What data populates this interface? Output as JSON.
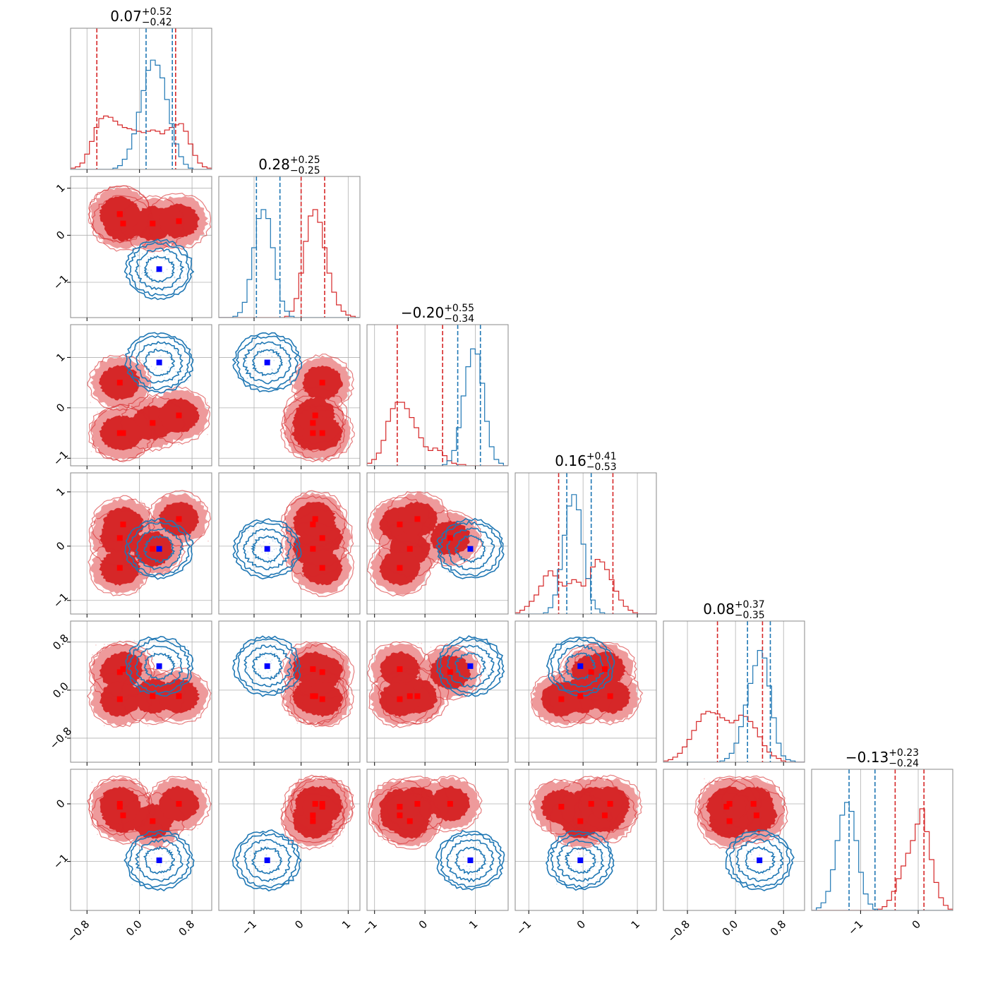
{
  "colors": {
    "red": "#d62728",
    "blue": "#1f77b4",
    "red_marker": "#ff0000",
    "blue_marker": "#0000ff",
    "grid": "#b0b0b0",
    "frame": "#888888"
  },
  "chart_data": {
    "type": "corner",
    "dims": 6,
    "grid": true,
    "ranges": [
      [
        -1.05,
        1.1
      ],
      [
        -1.75,
        1.25
      ],
      [
        -1.15,
        1.65
      ],
      [
        -1.25,
        1.35
      ],
      [
        -1.2,
        1.15
      ],
      [
        -1.85,
        0.6
      ]
    ],
    "ticks": [
      {
        "values": [
          -0.8,
          0.0,
          0.8
        ],
        "labels": [
          "−0.8",
          "0.0",
          "0.8"
        ]
      },
      {
        "values": [
          -1,
          0,
          1
        ],
        "labels": [
          "−1",
          "0",
          "1"
        ]
      },
      {
        "values": [
          -1,
          0,
          1
        ],
        "labels": [
          "−1",
          "0",
          "1"
        ]
      },
      {
        "values": [
          -1,
          0,
          1
        ],
        "labels": [
          "−1",
          "0",
          "1"
        ]
      },
      {
        "values": [
          -0.8,
          0.0,
          0.8
        ],
        "labels": [
          "−0.8",
          "0.0",
          "0.8"
        ]
      },
      {
        "values": [
          -1,
          0
        ],
        "labels": [
          "−1",
          "0"
        ]
      }
    ],
    "titles": [
      {
        "median": "0.07",
        "plus": "+0.52",
        "minus": "−0.42"
      },
      {
        "median": "0.28",
        "plus": "+0.25",
        "minus": "−0.25"
      },
      {
        "median": "−0.20",
        "plus": "+0.55",
        "minus": "−0.34"
      },
      {
        "median": "0.16",
        "plus": "+0.41",
        "minus": "−0.53"
      },
      {
        "median": "0.08",
        "plus": "+0.37",
        "minus": "−0.35"
      },
      {
        "median": "−0.13",
        "plus": "+0.23",
        "minus": "−0.24"
      }
    ],
    "red_modes": [
      [
        -0.3,
        0.45,
        0.5,
        0.15,
        0.3,
        0.0
      ],
      [
        -0.25,
        0.25,
        -0.5,
        0.4,
        0.35,
        -0.2
      ],
      [
        0.2,
        0.25,
        -0.3,
        -0.05,
        -0.1,
        -0.3
      ],
      [
        0.6,
        0.3,
        -0.15,
        0.5,
        -0.1,
        0.0
      ],
      [
        -0.3,
        0.45,
        -0.5,
        -0.4,
        -0.15,
        -0.05
      ]
    ],
    "blue_center": [
      0.3,
      -0.72,
      0.9,
      -0.05,
      0.4,
      -0.98
    ],
    "quantiles": {
      "red": [
        [
          -0.65,
          0.55
        ],
        [
          0.0,
          0.5
        ],
        [
          -0.55,
          0.35
        ],
        [
          -0.45,
          0.55
        ],
        [
          -0.3,
          0.45
        ],
        [
          -0.4,
          0.1
        ]
      ],
      "blue": [
        [
          0.1,
          0.5
        ],
        [
          -0.95,
          -0.45
        ],
        [
          0.65,
          1.1
        ],
        [
          -0.3,
          0.15
        ],
        [
          0.2,
          0.58
        ],
        [
          -1.2,
          -0.75
        ]
      ]
    },
    "histograms": {
      "red": [
        [
          0.01,
          0.02,
          0.05,
          0.12,
          0.22,
          0.33,
          0.4,
          0.42,
          0.41,
          0.38,
          0.35,
          0.33,
          0.32,
          0.31,
          0.3,
          0.29,
          0.3,
          0.31,
          0.3,
          0.28,
          0.31,
          0.33,
          0.35,
          0.36,
          0.3,
          0.2,
          0.11,
          0.05,
          0.02,
          0.01
        ],
        [
          0.0,
          0.0,
          0.0,
          0.0,
          0.0,
          0.0,
          0.0,
          0.0,
          0.0,
          0.0,
          0.0,
          0.0,
          0.0,
          0.0,
          0.01,
          0.05,
          0.15,
          0.35,
          0.6,
          0.8,
          0.85,
          0.75,
          0.55,
          0.35,
          0.2,
          0.1,
          0.05,
          0.02,
          0.01,
          0.0
        ],
        [
          0.02,
          0.05,
          0.1,
          0.2,
          0.35,
          0.45,
          0.5,
          0.5,
          0.45,
          0.38,
          0.3,
          0.22,
          0.15,
          0.12,
          0.14,
          0.12,
          0.08,
          0.04,
          0.02,
          0.01,
          0.01,
          0.0,
          0.0,
          0.0,
          0.0,
          0.0,
          0.0,
          0.0,
          0.0,
          0.0
        ],
        [
          0.01,
          0.03,
          0.06,
          0.1,
          0.15,
          0.22,
          0.3,
          0.34,
          0.3,
          0.25,
          0.22,
          0.24,
          0.27,
          0.25,
          0.22,
          0.28,
          0.37,
          0.43,
          0.41,
          0.35,
          0.27,
          0.18,
          0.11,
          0.06,
          0.03,
          0.01,
          0.0,
          0.0,
          0.0,
          0.0
        ],
        [
          0.01,
          0.02,
          0.04,
          0.07,
          0.12,
          0.18,
          0.25,
          0.32,
          0.38,
          0.4,
          0.39,
          0.38,
          0.35,
          0.33,
          0.31,
          0.33,
          0.37,
          0.36,
          0.32,
          0.27,
          0.2,
          0.13,
          0.08,
          0.05,
          0.03,
          0.01,
          0.0,
          0.0,
          0.0,
          0.0
        ],
        [
          0.0,
          0.0,
          0.0,
          0.0,
          0.0,
          0.0,
          0.0,
          0.0,
          0.0,
          0.0,
          0.0,
          0.0,
          0.0,
          0.0,
          0.01,
          0.03,
          0.08,
          0.15,
          0.25,
          0.35,
          0.45,
          0.55,
          0.68,
          0.8,
          0.62,
          0.4,
          0.22,
          0.1,
          0.04,
          0.01
        ]
      ],
      "blue": [
        [
          0.0,
          0.0,
          0.0,
          0.0,
          0.0,
          0.0,
          0.0,
          0.0,
          0.0,
          0.01,
          0.03,
          0.08,
          0.16,
          0.28,
          0.45,
          0.62,
          0.78,
          0.86,
          0.82,
          0.72,
          0.55,
          0.36,
          0.2,
          0.1,
          0.04,
          0.01,
          0.0,
          0.0,
          0.0,
          0.0
        ],
        [
          0.0,
          0.0,
          0.0,
          0.01,
          0.04,
          0.12,
          0.3,
          0.55,
          0.78,
          0.85,
          0.78,
          0.55,
          0.3,
          0.13,
          0.05,
          0.01,
          0.0,
          0.0,
          0.0,
          0.0,
          0.0,
          0.0,
          0.0,
          0.0,
          0.0,
          0.0,
          0.0,
          0.0,
          0.0,
          0.0
        ],
        [
          0.0,
          0.0,
          0.0,
          0.0,
          0.0,
          0.0,
          0.0,
          0.0,
          0.0,
          0.0,
          0.0,
          0.0,
          0.0,
          0.0,
          0.0,
          0.0,
          0.01,
          0.04,
          0.12,
          0.3,
          0.55,
          0.78,
          0.92,
          0.88,
          0.65,
          0.35,
          0.15,
          0.05,
          0.02,
          0.0
        ],
        [
          0.0,
          0.0,
          0.0,
          0.0,
          0.0,
          0.0,
          0.01,
          0.05,
          0.15,
          0.35,
          0.62,
          0.85,
          0.94,
          0.82,
          0.55,
          0.28,
          0.11,
          0.04,
          0.01,
          0.0,
          0.0,
          0.0,
          0.0,
          0.0,
          0.0,
          0.0,
          0.0,
          0.0,
          0.0,
          0.0
        ],
        [
          0.0,
          0.0,
          0.0,
          0.0,
          0.0,
          0.0,
          0.0,
          0.0,
          0.0,
          0.0,
          0.0,
          0.0,
          0.01,
          0.03,
          0.07,
          0.15,
          0.28,
          0.45,
          0.62,
          0.76,
          0.88,
          0.82,
          0.6,
          0.35,
          0.15,
          0.05,
          0.02,
          0.01,
          0.0,
          0.0
        ],
        [
          0.0,
          0.02,
          0.06,
          0.15,
          0.32,
          0.55,
          0.75,
          0.85,
          0.78,
          0.55,
          0.3,
          0.13,
          0.05,
          0.01,
          0.0,
          0.0,
          0.0,
          0.0,
          0.0,
          0.0,
          0.0,
          0.0,
          0.0,
          0.0,
          0.0,
          0.0,
          0.0,
          0.0,
          0.0,
          0.0
        ]
      ]
    }
  }
}
